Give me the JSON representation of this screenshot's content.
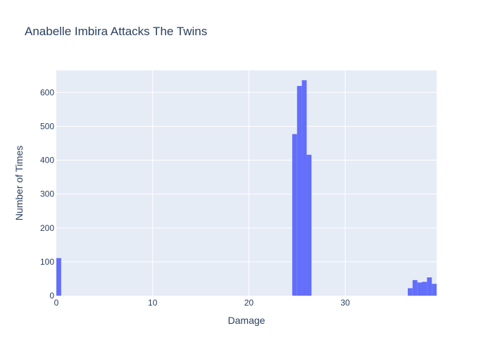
{
  "chart_data": {
    "type": "bar",
    "title": "Anabelle Imbira Attacks The Twins",
    "xlabel": "Damage",
    "ylabel": "Number of Times",
    "xlim": [
      0,
      39.5
    ],
    "ylim": [
      0,
      665
    ],
    "xticks": [
      0,
      10,
      20,
      30
    ],
    "yticks": [
      0,
      100,
      200,
      300,
      400,
      500,
      600
    ],
    "grid": true,
    "bin_width": 0.5,
    "bars": [
      {
        "x0": 0,
        "x1": 0.5,
        "y": 111
      },
      {
        "x0": 24.5,
        "x1": 25,
        "y": 477
      },
      {
        "x0": 25,
        "x1": 25.5,
        "y": 619
      },
      {
        "x0": 25.5,
        "x1": 26,
        "y": 636
      },
      {
        "x0": 26,
        "x1": 26.5,
        "y": 416
      },
      {
        "x0": 36.5,
        "x1": 37,
        "y": 22
      },
      {
        "x0": 37,
        "x1": 37.5,
        "y": 46
      },
      {
        "x0": 37.5,
        "x1": 38,
        "y": 39
      },
      {
        "x0": 38,
        "x1": 38.5,
        "y": 41
      },
      {
        "x0": 38.5,
        "x1": 39,
        "y": 54
      },
      {
        "x0": 39,
        "x1": 39.5,
        "y": 35
      }
    ],
    "bar_color": "#636efa",
    "plot_bg": "#e5ecf6",
    "grid_color": "#ffffff"
  }
}
